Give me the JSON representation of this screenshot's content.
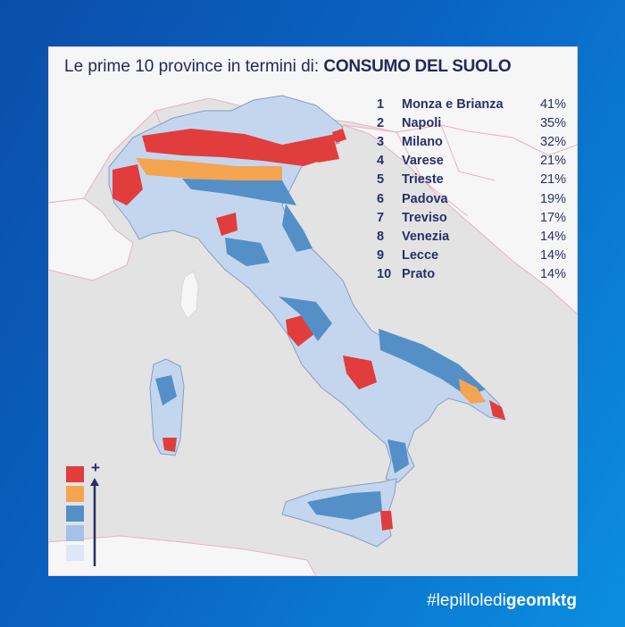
{
  "title": {
    "prefix": "Le prime 10 province in termini di: ",
    "emphasis": "CONSUMO DEL SUOLO"
  },
  "ranking": [
    {
      "rank": "1",
      "province": "Monza e Brianza",
      "value": "41%"
    },
    {
      "rank": "2",
      "province": "Napoli",
      "value": "35%"
    },
    {
      "rank": "3",
      "province": "Milano",
      "value": "32%"
    },
    {
      "rank": "4",
      "province": "Varese",
      "value": "21%"
    },
    {
      "rank": "5",
      "province": "Trieste",
      "value": "21%"
    },
    {
      "rank": "6",
      "province": "Padova",
      "value": "19%"
    },
    {
      "rank": "7",
      "province": "Treviso",
      "value": "17%"
    },
    {
      "rank": "8",
      "province": "Venezia",
      "value": "14%"
    },
    {
      "rank": "9",
      "province": "Lecce",
      "value": "14%"
    },
    {
      "rank": "10",
      "province": "Prato",
      "value": "14%"
    }
  ],
  "legend": {
    "plus_symbol": "+",
    "classes": [
      "#e13d3d",
      "#f5a452",
      "#5490c7",
      "#a4c1e6",
      "#dde7f7"
    ]
  },
  "hashtag": {
    "prefix": "#lepilloledi",
    "emphasis": "geomktg"
  },
  "colors": {
    "sea": "#e3e3e3",
    "land_outside": "#f6f6f6",
    "borders": "#e7b3c4",
    "title_text": "#22295e",
    "background_start": "#0a4ea8",
    "background_end": "#0b8ee0"
  }
}
